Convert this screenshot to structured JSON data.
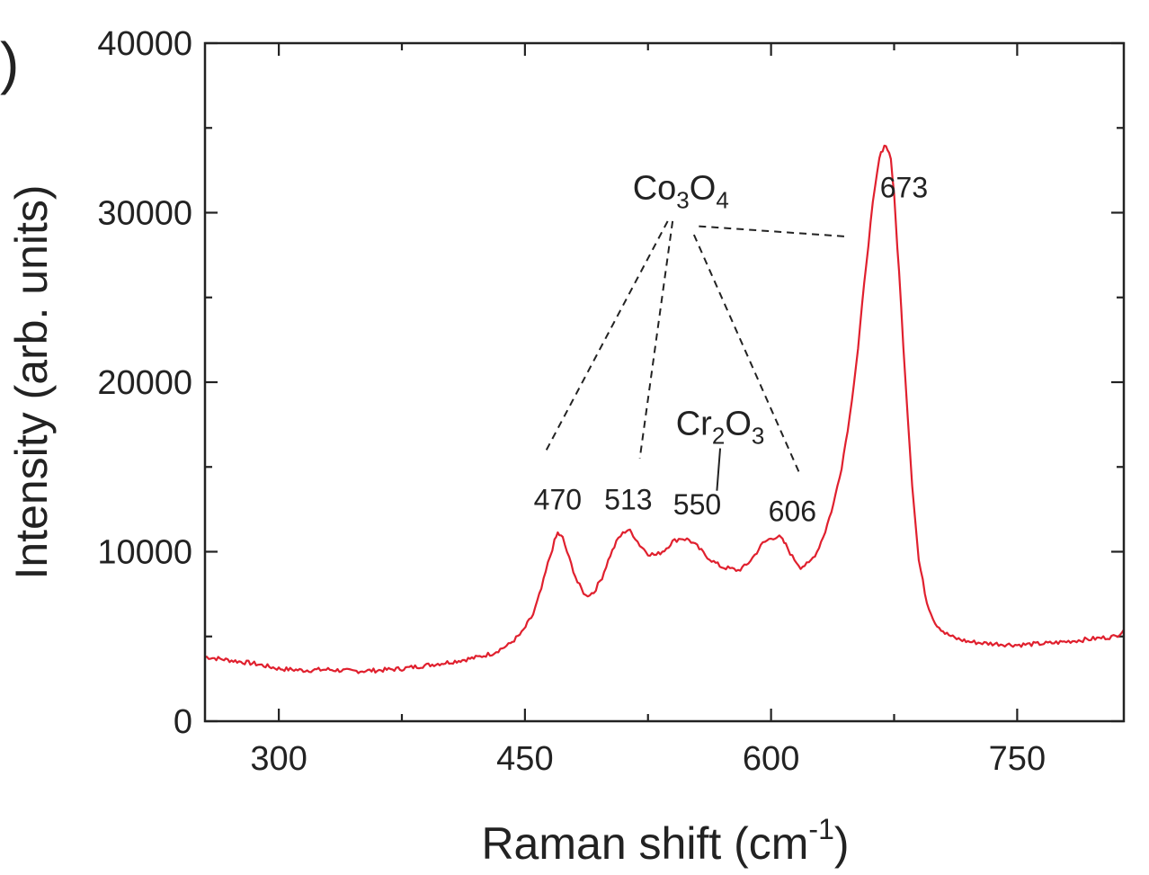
{
  "panel_label": ")",
  "chart_data": {
    "type": "line",
    "xlabel": "Raman shift (cm",
    "xlabel_sup": "-1",
    "xlabel_close": ")",
    "ylabel": "Intensity (arb. units)",
    "xlim": [
      255,
      815
    ],
    "ylim": [
      0,
      40000
    ],
    "xticks": [
      300,
      450,
      600,
      750
    ],
    "yticks": [
      0,
      10000,
      20000,
      30000,
      40000
    ],
    "line_color": "#e0202e",
    "series": [
      {
        "x": [
          255,
          270,
          285,
          300,
          315,
          330,
          345,
          360,
          375,
          390,
          405,
          420,
          430,
          440,
          448,
          455,
          460,
          464,
          468,
          470,
          473,
          477,
          482,
          487,
          492,
          497,
          502,
          507,
          511,
          513,
          516,
          520,
          525,
          530,
          535,
          540,
          545,
          550,
          555,
          560,
          565,
          570,
          575,
          580,
          585,
          590,
          595,
          600,
          604,
          606,
          609,
          613,
          618,
          623,
          628,
          633,
          638,
          643,
          648,
          653,
          658,
          662,
          666,
          669,
          671,
          673,
          675,
          678,
          682,
          686,
          690,
          695,
          700,
          706,
          712,
          720,
          730,
          740,
          750,
          760,
          770,
          780,
          790,
          800,
          810,
          815
        ],
        "y": [
          3800,
          3600,
          3400,
          3100,
          3000,
          3050,
          2950,
          3000,
          3100,
          3300,
          3500,
          3750,
          4000,
          4500,
          5200,
          6300,
          7800,
          9300,
          10600,
          11100,
          10800,
          9600,
          8200,
          7400,
          7600,
          8500,
          9800,
          10800,
          11200,
          11300,
          11000,
          10400,
          9900,
          9800,
          10100,
          10600,
          10800,
          10700,
          10300,
          9800,
          9400,
          9100,
          9000,
          8900,
          9200,
          9800,
          10500,
          10800,
          10900,
          10800,
          10400,
          9700,
          9100,
          9300,
          10000,
          11200,
          12800,
          15000,
          18000,
          22000,
          27000,
          30500,
          33200,
          34000,
          33800,
          33200,
          31000,
          26500,
          20000,
          14000,
          9500,
          7000,
          5800,
          5200,
          4900,
          4700,
          4600,
          4550,
          4500,
          4550,
          4600,
          4700,
          4800,
          4900,
          5000,
          5400
        ]
      }
    ],
    "annotations": [
      {
        "text": "470",
        "x": 470,
        "y": 12500
      },
      {
        "text": "513",
        "x": 513,
        "y": 12500
      },
      {
        "text": "550",
        "x": 555,
        "y": 12200
      },
      {
        "text": "606",
        "x": 613,
        "y": 11800
      },
      {
        "text": "673",
        "x": 681,
        "y": 30900
      }
    ],
    "compounds": [
      {
        "base1": "Co",
        "sub1": "3",
        "base2": "O",
        "sub2": "4",
        "x": 545,
        "y": 30800
      },
      {
        "base1": "Cr",
        "sub1": "2",
        "base2": "O",
        "sub2": "3",
        "x": 569,
        "y": 16900
      }
    ],
    "leader_lines": [
      {
        "style": "dashed",
        "from": [
          537,
          29500
        ],
        "to": [
          462,
          15800
        ]
      },
      {
        "style": "dashed",
        "from": [
          540,
          29500
        ],
        "to": [
          520,
          15500
        ]
      },
      {
        "style": "dashed",
        "from": [
          553,
          28700
        ],
        "to": [
          617,
          14700
        ]
      },
      {
        "style": "dashed",
        "from": [
          556,
          29200
        ],
        "to": [
          645,
          28600
        ]
      },
      {
        "style": "solid",
        "from": [
          569,
          16100
        ],
        "to": [
          567,
          13600
        ]
      }
    ]
  }
}
